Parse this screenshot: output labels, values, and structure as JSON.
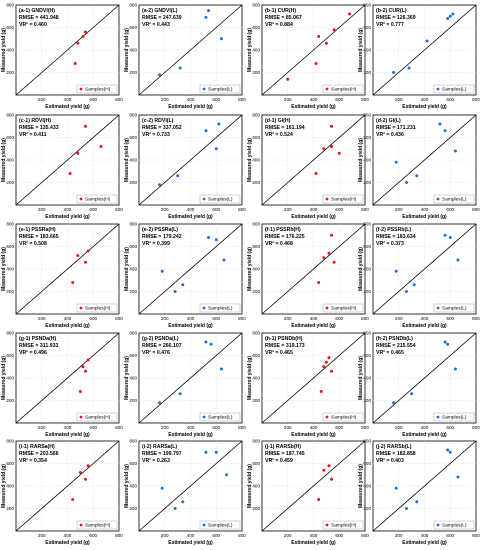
{
  "figure": {
    "y_label": "Measured yield (g)",
    "x_label": "Estimated yield (g)",
    "legend_high": "Samples(H)",
    "legend_low": "Samples(L)",
    "colors": {
      "high": "#e8141c",
      "low": "#1f6fd6",
      "line": "#000000",
      "frame": "#000000"
    }
  },
  "chart_data": [
    {
      "type": "scatter",
      "row": 0,
      "col": 0,
      "group": "H",
      "title": "(a-1) GNDVI(H)",
      "rmse": "RMSE = 441.948",
      "vr": "VR² = 0.460",
      "xlim": [
        0,
        800
      ],
      "ylim": [
        0,
        800
      ],
      "points": [
        [
          480,
          460
        ],
        [
          520,
          520
        ],
        [
          540,
          560
        ],
        [
          460,
          280
        ]
      ]
    },
    {
      "type": "scatter",
      "row": 0,
      "col": 1,
      "group": "L",
      "title": "(a-2) GNDVI(L)",
      "rmse": "RMSE = 247.639",
      "vr": "VR² = 0.443",
      "xlim": [
        0,
        800
      ],
      "ylim": [
        0,
        800
      ],
      "points": [
        [
          160,
          180
        ],
        [
          320,
          240
        ],
        [
          520,
          690
        ],
        [
          540,
          750
        ],
        [
          640,
          500
        ]
      ]
    },
    {
      "type": "scatter",
      "row": 0,
      "col": 2,
      "group": "H",
      "title": "(b-1) CUR(H)",
      "rmse": "RMSE = 85.067",
      "vr": "VR² = 0.884",
      "xlim": [
        0,
        800
      ],
      "ylim": [
        0,
        800
      ],
      "points": [
        [
          200,
          140
        ],
        [
          420,
          280
        ],
        [
          440,
          520
        ],
        [
          500,
          460
        ],
        [
          560,
          580
        ],
        [
          680,
          720
        ]
      ]
    },
    {
      "type": "scatter",
      "row": 0,
      "col": 3,
      "group": "L",
      "title": "(b-2) CUR(L)",
      "rmse": "RMSE = 126.369",
      "vr": "VR² = 0.777",
      "xlim": [
        0,
        800
      ],
      "ylim": [
        0,
        800
      ],
      "points": [
        [
          160,
          200
        ],
        [
          280,
          240
        ],
        [
          420,
          480
        ],
        [
          580,
          680
        ],
        [
          600,
          700
        ],
        [
          620,
          720
        ]
      ]
    },
    {
      "type": "scatter",
      "row": 1,
      "col": 0,
      "group": "H",
      "title": "(c-1) RDVI(H)",
      "rmse": "RMSE = 135.433",
      "vr": "VR² = 0.411",
      "xlim": [
        0,
        800
      ],
      "ylim": [
        0,
        800
      ],
      "points": [
        [
          420,
          280
        ],
        [
          480,
          460
        ],
        [
          540,
          700
        ],
        [
          660,
          520
        ]
      ]
    },
    {
      "type": "scatter",
      "row": 1,
      "col": 1,
      "group": "L",
      "title": "(c-2) RDVI(L)",
      "rmse": "RMSE = 337.052",
      "vr": "VR² = 0.733",
      "xlim": [
        0,
        800
      ],
      "ylim": [
        0,
        800
      ],
      "points": [
        [
          160,
          180
        ],
        [
          300,
          260
        ],
        [
          520,
          660
        ],
        [
          600,
          500
        ],
        [
          620,
          720
        ]
      ]
    },
    {
      "type": "scatter",
      "row": 1,
      "col": 2,
      "group": "H",
      "title": "(d-1) GI(H)",
      "rmse": "RMSE = 161.194",
      "vr": "VR² = 0.524",
      "xlim": [
        0,
        800
      ],
      "ylim": [
        0,
        800
      ],
      "points": [
        [
          420,
          280
        ],
        [
          480,
          500
        ],
        [
          540,
          520
        ],
        [
          540,
          700
        ],
        [
          600,
          460
        ]
      ]
    },
    {
      "type": "scatter",
      "row": 1,
      "col": 3,
      "group": "L",
      "title": "(d-2) GI(L)",
      "rmse": "RMSE = 171.231",
      "vr": "VR² = 0.436",
      "xlim": [
        0,
        800
      ],
      "ylim": [
        0,
        800
      ],
      "points": [
        [
          180,
          380
        ],
        [
          260,
          200
        ],
        [
          340,
          260
        ],
        [
          520,
          720
        ],
        [
          560,
          660
        ],
        [
          640,
          480
        ]
      ]
    },
    {
      "type": "scatter",
      "row": 2,
      "col": 0,
      "group": "H",
      "title": "(e-1) PSSRa(H)",
      "rmse": "RMSE = 183.665",
      "vr": "VR² = 0.508",
      "xlim": [
        0,
        800
      ],
      "ylim": [
        0,
        800
      ],
      "points": [
        [
          440,
          280
        ],
        [
          480,
          520
        ],
        [
          540,
          460
        ],
        [
          560,
          560
        ]
      ]
    },
    {
      "type": "scatter",
      "row": 2,
      "col": 1,
      "group": "L",
      "title": "(e-2) PSSRa(L)",
      "rmse": "RMSE = 179.242",
      "vr": "VR² = 0.399",
      "xlim": [
        0,
        800
      ],
      "ylim": [
        0,
        800
      ],
      "points": [
        [
          180,
          380
        ],
        [
          280,
          200
        ],
        [
          340,
          260
        ],
        [
          540,
          680
        ],
        [
          600,
          660
        ],
        [
          660,
          480
        ]
      ]
    },
    {
      "type": "scatter",
      "row": 2,
      "col": 2,
      "group": "H",
      "title": "(f-1) PSSRb(H)",
      "rmse": "RMSE = 176.225",
      "vr": "VR² = 0.468",
      "xlim": [
        0,
        800
      ],
      "ylim": [
        0,
        800
      ],
      "points": [
        [
          440,
          280
        ],
        [
          480,
          500
        ],
        [
          520,
          540
        ],
        [
          540,
          700
        ],
        [
          560,
          460
        ]
      ]
    },
    {
      "type": "scatter",
      "row": 2,
      "col": 3,
      "group": "L",
      "title": "(f-2) PSSRb(L)",
      "rmse": "RMSE = 183.634",
      "vr": "VR² = 0.373",
      "xlim": [
        0,
        800
      ],
      "ylim": [
        0,
        800
      ],
      "points": [
        [
          180,
          380
        ],
        [
          260,
          200
        ],
        [
          320,
          260
        ],
        [
          560,
          700
        ],
        [
          600,
          680
        ],
        [
          660,
          480
        ]
      ]
    },
    {
      "type": "scatter",
      "row": 3,
      "col": 0,
      "group": "H",
      "title": "(g-1) PSNDa(H)",
      "rmse": "RMSE = 311.933",
      "vr": "VR² = 0.496",
      "xlim": [
        0,
        800
      ],
      "ylim": [
        0,
        800
      ],
      "points": [
        [
          500,
          280
        ],
        [
          520,
          500
        ],
        [
          540,
          460
        ],
        [
          560,
          560
        ]
      ]
    },
    {
      "type": "scatter",
      "row": 3,
      "col": 1,
      "group": "L",
      "title": "(g-2) PSNDa(L)",
      "rmse": "RMSE = 266.107",
      "vr": "VR² = 0.476",
      "xlim": [
        0,
        800
      ],
      "ylim": [
        0,
        800
      ],
      "points": [
        [
          160,
          180
        ],
        [
          320,
          260
        ],
        [
          520,
          720
        ],
        [
          560,
          700
        ],
        [
          640,
          480
        ]
      ]
    },
    {
      "type": "scatter",
      "row": 3,
      "col": 2,
      "group": "H",
      "title": "(h-1) PSNDb(H)",
      "rmse": "RMSE = 319.173",
      "vr": "VR² = 0.465",
      "xlim": [
        0,
        800
      ],
      "ylim": [
        0,
        800
      ],
      "points": [
        [
          460,
          280
        ],
        [
          480,
          500
        ],
        [
          500,
          540
        ],
        [
          520,
          580
        ],
        [
          540,
          460
        ]
      ]
    },
    {
      "type": "scatter",
      "row": 3,
      "col": 3,
      "group": "L",
      "title": "(h-2) PSNDb(L)",
      "rmse": "RMSE = 215.554",
      "vr": "VR² = 0.465",
      "xlim": [
        0,
        800
      ],
      "ylim": [
        0,
        800
      ],
      "points": [
        [
          160,
          180
        ],
        [
          300,
          260
        ],
        [
          560,
          720
        ],
        [
          580,
          700
        ],
        [
          640,
          480
        ]
      ]
    },
    {
      "type": "scatter",
      "row": 4,
      "col": 0,
      "group": "H",
      "title": "(i-1) RARSa(H)",
      "rmse": "RMSE = 203.566",
      "vr": "VR² = 0.354",
      "xlim": [
        0,
        800
      ],
      "ylim": [
        0,
        800
      ],
      "points": [
        [
          440,
          280
        ],
        [
          500,
          520
        ],
        [
          540,
          460
        ],
        [
          560,
          580
        ]
      ]
    },
    {
      "type": "scatter",
      "row": 4,
      "col": 1,
      "group": "L",
      "title": "(i-2) RARSa(L)",
      "rmse": "RMSE = 199.797",
      "vr": "VR² = 0.263",
      "xlim": [
        0,
        800
      ],
      "ylim": [
        0,
        800
      ],
      "points": [
        [
          180,
          380
        ],
        [
          280,
          200
        ],
        [
          340,
          260
        ],
        [
          520,
          700
        ],
        [
          600,
          700
        ],
        [
          680,
          500
        ]
      ]
    },
    {
      "type": "scatter",
      "row": 4,
      "col": 2,
      "group": "H",
      "title": "(j-1) RARSb(H)",
      "rmse": "RMSE = 187.745",
      "vr": "VR² = 0.459",
      "xlim": [
        0,
        800
      ],
      "ylim": [
        0,
        800
      ],
      "points": [
        [
          440,
          280
        ],
        [
          480,
          540
        ],
        [
          520,
          580
        ],
        [
          540,
          460
        ]
      ]
    },
    {
      "type": "scatter",
      "row": 4,
      "col": 3,
      "group": "L",
      "title": "(j-2) RARSb(L)",
      "rmse": "RMSE = 182.858",
      "vr": "VR² = 0.403",
      "xlim": [
        0,
        800
      ],
      "ylim": [
        0,
        800
      ],
      "points": [
        [
          180,
          380
        ],
        [
          260,
          200
        ],
        [
          340,
          260
        ],
        [
          580,
          720
        ],
        [
          600,
          700
        ],
        [
          660,
          480
        ]
      ]
    }
  ]
}
